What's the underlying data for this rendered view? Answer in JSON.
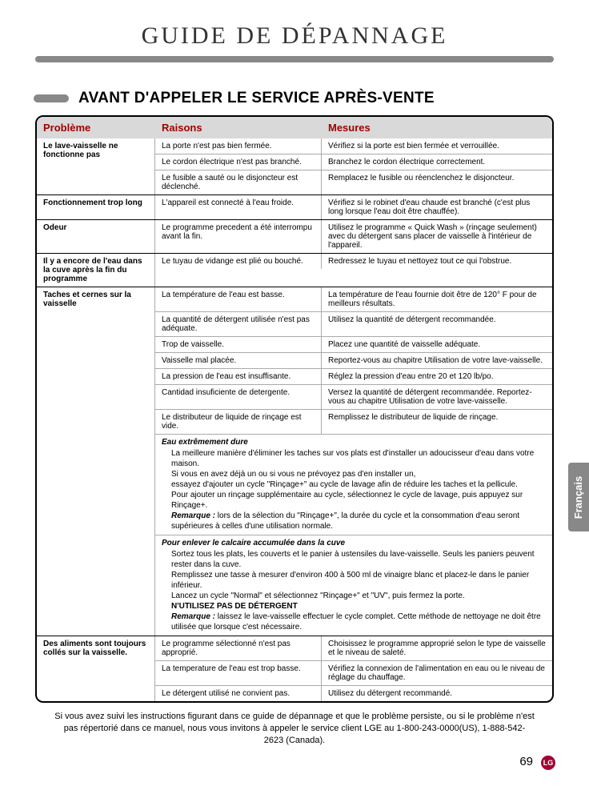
{
  "page": {
    "title": "GUIDE DE DÉPANNAGE",
    "section_title": "AVANT D'APPELER LE SERVICE APRÈS-VENTE",
    "language_tab": "Français",
    "page_number": "69",
    "logo_text": "LG",
    "footer_note": "Si vous avez suivi les instructions figurant dans ce guide de dépannage et que le problème persiste, ou si le problème n'est pas répertorié dans ce manuel, nous vous invitons à appeler le service client LGE au 1-800-243-0000(US), 1-888-542-2623 (Canada)."
  },
  "headers": {
    "problem": "Problème",
    "reason": "Raisons",
    "action": "Mesures"
  },
  "groups": [
    {
      "problem": "Le lave-vaisselle ne fonctionne pas",
      "items": [
        {
          "reason": "La porte n'est pas bien fermée.",
          "action": "Vérifiez si la porte est bien fermée et verrouillée."
        },
        {
          "reason": "Le cordon électrique n'est pas branché.",
          "action": "Branchez le cordon électrique correctement."
        },
        {
          "reason": "Le fusible a sauté ou le disjoncteur est déclenché.",
          "action": "Remplacez le fusible ou réenclenchez le disjoncteur."
        }
      ]
    },
    {
      "problem": "Fonctionnement trop long",
      "items": [
        {
          "reason": "L'appareil est connecté à l'eau froide.",
          "action": "Vérifiez si le robinet d'eau chaude est branché (c'est plus long lorsque l'eau doit être chauffée)."
        }
      ]
    },
    {
      "problem": "Odeur",
      "items": [
        {
          "reason": "Le programme precedent a été interrompu avant la fin.",
          "action": "Utilisez le programme « Quick Wash » (rinçage seulement) avec du détergent sans placer de vaisselle à l'intérieur de l'appareil."
        }
      ]
    },
    {
      "problem": "Il y a encore de l'eau dans la cuve après la fin du programme",
      "items": [
        {
          "reason": "Le tuyau de vidange est plié ou bouché.",
          "action": "Redressez le tuyau et nettoyez tout ce qui l'obstrue."
        }
      ]
    },
    {
      "problem": "Taches et cernes sur la vaisselle",
      "items": [
        {
          "reason": "La température de l'eau est basse.",
          "action": "La température de l'eau fournie doit être de 120° F pour de meilleurs résultats."
        },
        {
          "reason": "La quantité de détergent utilisée n'est pas adéquate.",
          "action": "Utilisez la quantité de détergent recommandée."
        },
        {
          "reason": "Trop de vaisselle.",
          "action": "Placez une quantité de vaisselle adéquate."
        },
        {
          "reason": "Vaisselle mal placée.",
          "action": "Reportez-vous au chapitre Utilisation de votre lave-vaisselle."
        },
        {
          "reason": "La pression de l'eau est insuffisante.",
          "action": "Réglez la pression d'eau entre 20 et 120 lb/po."
        },
        {
          "reason": "Cantidad insuficiente de detergente.",
          "action": "Versez la quantité de détergent recommandée. Reportez-vous au chapitre Utilisation de votre lave-vaisselle."
        },
        {
          "reason": "Le distributeur de liquide de rinçage est vide.",
          "action": "Remplissez le distributeur de liquide de rinçage."
        }
      ],
      "notes": [
        {
          "header": "Eau extrêmement dure",
          "lines": [
            "La meilleure manière d'éliminer les taches sur vos plats est d'installer un adoucisseur d'eau dans votre maison.",
            "Si vous en avez déjà un ou si vous ne prévoyez pas d'en installer un,",
            "essayez d'ajouter un cycle \"Rinçage+\" au cycle de lavage afin de réduire les taches et la pellicule.",
            "Pour ajouter un rinçage supplémentaire au cycle, sélectionnez le cycle de lavage, puis appuyez sur Rinçage+."
          ],
          "remark_label": "Remarque :",
          "remark": "lors de la sélection du \"Rinçage+\", la durée du cycle et la consommation d'eau seront supérieures à celles d'une utilisation normale."
        },
        {
          "header": "Pour enlever le calcaire accumulée dans la cuve",
          "lines": [
            "Sortez tous les plats, les couverts et le panier à ustensiles du lave-vaisselle. Seuls les paniers peuvent rester dans la cuve.",
            "Remplissez une tasse à mesurer d'environ 400 à 500 ml de vinaigre blanc et placez-le dans le panier inférieur.",
            "Lancez un cycle \"Normal\" et sélectionnez \"Rinçage+\" et \"UV\", puis fermez la porte.",
            "N'UTILISEZ PAS DE DÉTERGENT"
          ],
          "remark_label": "Remarque :",
          "remark": "laissez le lave-vaisselle effectuer le cycle complet. Cette méthode de nettoyage ne doit être utilisée que lorsque c'est nécessaire."
        }
      ]
    },
    {
      "problem": "Des aliments sont toujours collés sur la vaisselle.",
      "items": [
        {
          "reason": "Le programme sélectionné n'est pas approprié.",
          "action": "Choisissez le programme approprié selon le type de vaisselle et le niveau de saleté."
        },
        {
          "reason": "La temperature de l'eau est trop basse.",
          "action": "Vérifiez la connexion de l'alimentation en eau ou le niveau de réglage du chauffage."
        },
        {
          "reason": "Le détergent utilisé ne convient pas.",
          "action": "Utilisez du détergent recommandé."
        }
      ]
    }
  ],
  "colors": {
    "header_bg": "#d9d9d9",
    "header_text": "#a00000",
    "tab_bg": "#888888",
    "logo_bg": "#a50034"
  }
}
